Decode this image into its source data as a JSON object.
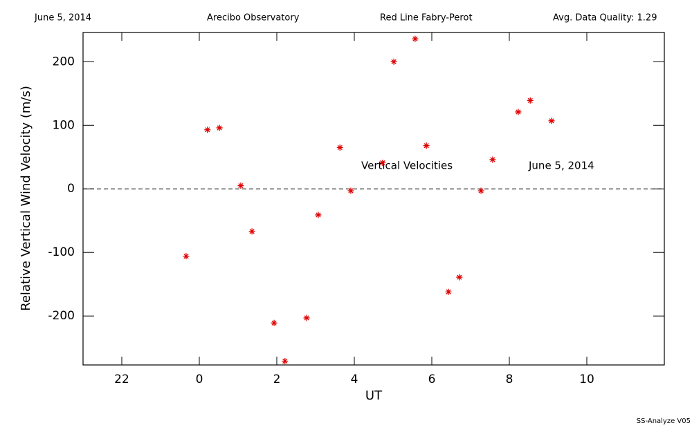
{
  "header": [
    "June 5, 2014",
    "Arecibo Observatory",
    "Red Line Fabry-Perot",
    "Avg. Data Quality: 1.29"
  ],
  "footer": "SS-Analyze V05",
  "chart_data": {
    "type": "scatter",
    "color": "#e00000",
    "xlabel": "UT",
    "ylabel": "Relative Vertical Wind Velocity (m/s)",
    "annotations": [
      "Vertical Velocities",
      "June 5, 2014"
    ],
    "x": [
      -0.34,
      0.21,
      0.52,
      1.07,
      1.36,
      1.93,
      2.21,
      2.77,
      3.07,
      3.63,
      3.91,
      4.73,
      5.02,
      5.57,
      5.86,
      6.43,
      6.71,
      7.27,
      7.57,
      8.23,
      8.54,
      9.09
    ],
    "values": [
      -106,
      93,
      96,
      5,
      -67,
      -211,
      -271,
      -203,
      -41,
      65,
      -3,
      41,
      200,
      236,
      68,
      -162,
      -139,
      -3,
      46,
      121,
      139,
      107
    ],
    "xlim": [
      -3,
      12
    ],
    "ylim": [
      -277,
      246
    ],
    "xticks": [
      {
        "value": -2,
        "label": "22"
      },
      0,
      2,
      4,
      6,
      8,
      10
    ],
    "yticks": [
      -200,
      -100,
      0,
      100,
      200
    ]
  }
}
